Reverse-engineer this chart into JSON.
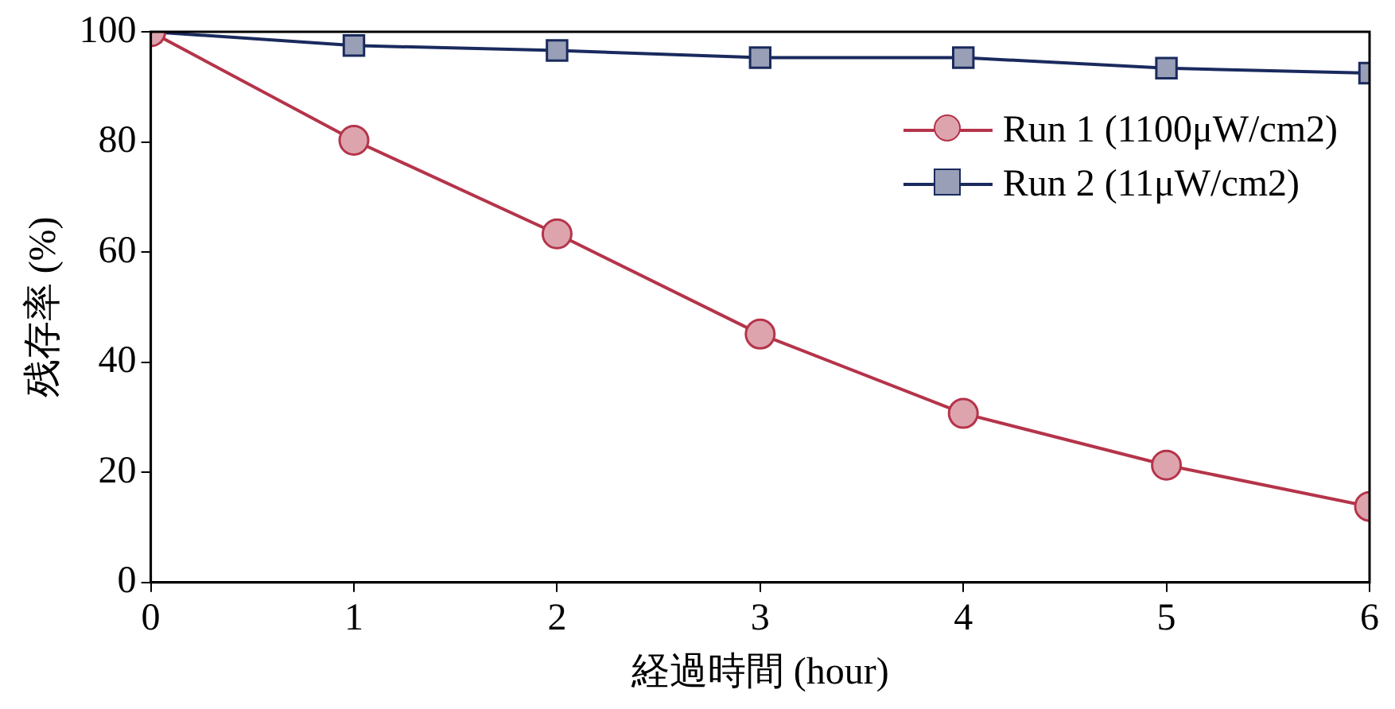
{
  "chart_data": {
    "type": "line",
    "xlabel": "経過時間 (hour)",
    "ylabel": "残存率 (%)",
    "x": [
      0,
      1,
      2,
      3,
      4,
      5,
      6
    ],
    "series": [
      {
        "name": "Run 1 (1100μW/cm2)",
        "color": "#b5344a",
        "marker": "circle",
        "values": [
          100,
          80.3,
          63.3,
          45.1,
          30.7,
          21.3,
          13.8
        ]
      },
      {
        "name": "Run 2 (11μW/cm2)",
        "color": "#1a2a5e",
        "marker": "square",
        "values": [
          100,
          97.5,
          96.6,
          95.3,
          95.3,
          93.4,
          92.5
        ]
      }
    ],
    "xlim": [
      0,
      6
    ],
    "xticks": [
      0,
      1,
      2,
      3,
      4,
      5,
      6
    ],
    "ylim": [
      0,
      100
    ],
    "yticks": [
      0,
      20,
      40,
      60,
      80,
      100
    ],
    "grid": false,
    "legend": "top right",
    "line_style": "solid"
  }
}
